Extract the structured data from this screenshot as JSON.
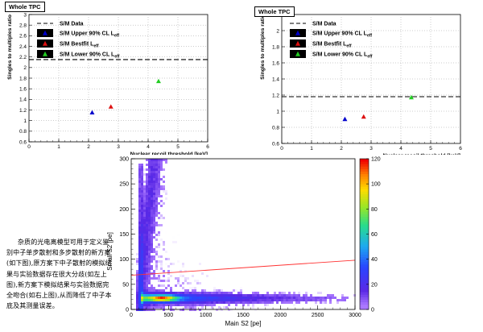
{
  "chart_data": [
    {
      "type": "scatter",
      "tag": "Whole TPC",
      "title": "",
      "xlabel": "Nuclear recoil threshold [keV]",
      "ylabel": "Singles to multiples ratio",
      "xlim": [
        0,
        6
      ],
      "ylim": [
        0.6,
        3.0
      ],
      "xticks": [
        "0",
        "1",
        "2",
        "3",
        "4",
        "5",
        "6"
      ],
      "yticks": [
        "0.6",
        "0.8",
        "1",
        "1.2",
        "1.4",
        "1.6",
        "1.8",
        "2",
        "2.2",
        "2.4",
        "2.6",
        "2.8",
        "3"
      ],
      "grid": true,
      "legend_position": "top-left",
      "data_line": {
        "name": "S/M Data",
        "y": 2.15
      },
      "series": [
        {
          "name": "S/M Upper 90% CL L",
          "subscript": "eff",
          "color": "#0000cc",
          "points": [
            {
              "x": 2.12,
              "y": 1.15
            }
          ]
        },
        {
          "name": "S/M Bestfit L",
          "subscript": "eff",
          "color": "#dd1111",
          "points": [
            {
              "x": 2.75,
              "y": 1.26
            }
          ]
        },
        {
          "name": "S/M Lower 90% CL L",
          "subscript": "eff",
          "color": "#22cc22",
          "points": [
            {
              "x": 4.35,
              "y": 1.74
            }
          ]
        }
      ]
    },
    {
      "type": "scatter",
      "tag": "Whole TPC",
      "title": "",
      "xlabel": "Nuclear recoil threshold [keV]",
      "ylabel": "Singles to multiples ratio",
      "xlim": [
        0,
        6
      ],
      "ylim": [
        0.6,
        2.2
      ],
      "xticks": [
        "0",
        "1",
        "2",
        "3",
        "4",
        "5",
        "6"
      ],
      "yticks": [
        "0.6",
        "0.8",
        "1",
        "1.2",
        "1.4",
        "1.6",
        "1.8",
        "2",
        "2.2"
      ],
      "grid": true,
      "legend_position": "top-left",
      "data_line": {
        "name": "S/M Data",
        "y": 1.18
      },
      "series": [
        {
          "name": "S/M Upper 90% CL L",
          "subscript": "eff",
          "color": "#0000cc",
          "points": [
            {
              "x": 2.12,
              "y": 0.9
            }
          ]
        },
        {
          "name": "S/M Bestfit L",
          "subscript": "eff",
          "color": "#dd1111",
          "points": [
            {
              "x": 2.75,
              "y": 0.93
            }
          ]
        },
        {
          "name": "S/M Lower 90% CL L",
          "subscript": "eff",
          "color": "#22cc22",
          "points": [
            {
              "x": 4.35,
              "y": 1.17
            }
          ]
        }
      ]
    },
    {
      "type": "heatmap",
      "title": "",
      "xlabel": "Main S2 [pe]",
      "ylabel": "Small S2 [pe]",
      "xlim": [
        0,
        3000
      ],
      "ylim": [
        0,
        300
      ],
      "xticks": [
        "0",
        "500",
        "1000",
        "1500",
        "2000",
        "2500",
        "3000"
      ],
      "yticks": [
        "0",
        "50",
        "100",
        "150",
        "200",
        "250",
        "300"
      ],
      "colorbar": {
        "min": 0,
        "max": 120,
        "ticks": [
          "0",
          "20",
          "40",
          "60",
          "80",
          "100",
          "120"
        ]
      },
      "cut_line": {
        "color": "#ff3333",
        "from": {
          "x": 0,
          "y": 68
        },
        "to": {
          "x": 3000,
          "y": 98
        }
      }
    }
  ],
  "note": {
    "text": "杂质的光电离模型可用于定义鉴别中子单步散射和多步散射的新方案(如下图),原方案下中子散射的模拟结果与实验数据存在很大分歧(如左上图),新方案下模拟结果与实验数据完全吻合(如右上图),从而降低了中子本底及其测量误差。"
  }
}
